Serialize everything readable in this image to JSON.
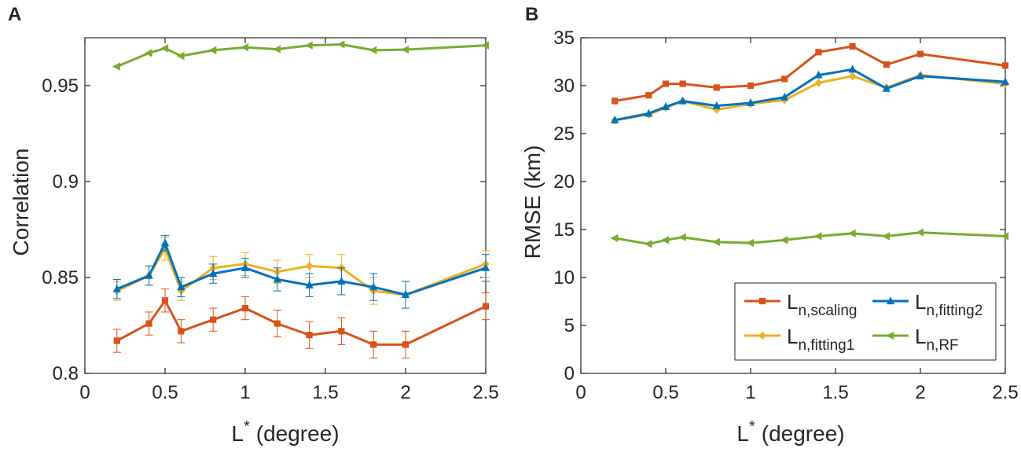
{
  "panels": [
    {
      "label": "A",
      "chart_data": {
        "type": "line",
        "xlabel": "(degree)",
        "xlabel_symbol": "L",
        "xlabel_sup": "*",
        "ylabel": "Correlation",
        "xlim": [
          0,
          2.5
        ],
        "ylim": [
          0.8,
          0.975
        ],
        "xticks": [
          "0",
          "0.5",
          "1",
          "1.5",
          "2",
          "2.5"
        ],
        "xtick_values": [
          0,
          0.5,
          1,
          1.5,
          2,
          2.5
        ],
        "yticks": [
          "0.8",
          "0.85",
          "0.9",
          "0.95"
        ],
        "ytick_values": [
          0.8,
          0.85,
          0.9,
          0.95
        ],
        "x": [
          0.2,
          0.4,
          0.5,
          0.6,
          0.8,
          1.0,
          1.2,
          1.4,
          1.6,
          1.8,
          2.0,
          2.5
        ],
        "series": [
          {
            "key": "rf",
            "color": "#77AC30",
            "marker": "triangle-left",
            "errorbars": false,
            "values": [
              0.96,
              0.967,
              0.9695,
              0.9655,
              0.9685,
              0.97,
              0.969,
              0.971,
              0.9715,
              0.9685,
              0.9688,
              0.971
            ]
          },
          {
            "key": "scaling",
            "color": "#D95319",
            "marker": "square",
            "errorbars": true,
            "values": [
              0.817,
              0.826,
              0.838,
              0.822,
              0.828,
              0.834,
              0.826,
              0.82,
              0.822,
              0.815,
              0.815,
              0.835
            ],
            "err": [
              0.006,
              0.006,
              0.006,
              0.006,
              0.006,
              0.006,
              0.007,
              0.007,
              0.007,
              0.007,
              0.007,
              0.007
            ]
          },
          {
            "key": "fitting1",
            "color": "#EDB120",
            "marker": "diamond",
            "errorbars": true,
            "values": [
              0.843,
              0.851,
              0.865,
              0.843,
              0.855,
              0.857,
              0.853,
              0.856,
              0.855,
              0.843,
              0.841,
              0.857
            ],
            "err": [
              0.005,
              0.005,
              0.006,
              0.005,
              0.006,
              0.006,
              0.006,
              0.006,
              0.007,
              0.007,
              0.007,
              0.007
            ]
          },
          {
            "key": "fitting2",
            "color": "#0072BD",
            "marker": "triangle-up",
            "errorbars": true,
            "values": [
              0.844,
              0.851,
              0.868,
              0.845,
              0.852,
              0.855,
              0.849,
              0.846,
              0.848,
              0.845,
              0.841,
              0.855
            ],
            "err": [
              0.005,
              0.005,
              0.004,
              0.005,
              0.005,
              0.005,
              0.006,
              0.006,
              0.007,
              0.007,
              0.007,
              0.007
            ]
          }
        ]
      }
    },
    {
      "label": "B",
      "chart_data": {
        "type": "line",
        "xlabel": "(degree)",
        "xlabel_symbol": "L",
        "xlabel_sup": "*",
        "ylabel": "RMSE (km)",
        "xlim": [
          0,
          2.5
        ],
        "ylim": [
          0,
          35
        ],
        "xticks": [
          "0",
          "0.5",
          "1",
          "1.5",
          "2",
          "2.5"
        ],
        "xtick_values": [
          0,
          0.5,
          1,
          1.5,
          2,
          2.5
        ],
        "yticks": [
          "0",
          "5",
          "10",
          "15",
          "20",
          "25",
          "30",
          "35"
        ],
        "ytick_values": [
          0,
          5,
          10,
          15,
          20,
          25,
          30,
          35
        ],
        "x": [
          0.2,
          0.4,
          0.5,
          0.6,
          0.8,
          1.0,
          1.2,
          1.4,
          1.6,
          1.8,
          2.0,
          2.5
        ],
        "series": [
          {
            "key": "scaling",
            "color": "#D95319",
            "marker": "square",
            "errorbars": false,
            "values": [
              28.4,
              29.0,
              30.2,
              30.2,
              29.8,
              30.0,
              30.7,
              33.5,
              34.1,
              32.2,
              33.3,
              32.1
            ]
          },
          {
            "key": "fitting1",
            "color": "#EDB120",
            "marker": "diamond",
            "errorbars": false,
            "values": [
              26.4,
              27.0,
              27.7,
              28.4,
              27.5,
              28.1,
              28.5,
              30.3,
              31.0,
              29.8,
              31.1,
              30.2
            ]
          },
          {
            "key": "fitting2",
            "color": "#0072BD",
            "marker": "triangle-up",
            "errorbars": false,
            "values": [
              26.4,
              27.1,
              27.8,
              28.4,
              27.9,
              28.2,
              28.8,
              31.1,
              31.7,
              29.7,
              31.0,
              30.4
            ]
          },
          {
            "key": "rf",
            "color": "#77AC30",
            "marker": "triangle-left",
            "errorbars": false,
            "values": [
              14.1,
              13.5,
              13.9,
              14.2,
              13.7,
              13.6,
              13.9,
              14.3,
              14.6,
              14.3,
              14.7,
              14.3
            ]
          }
        ],
        "legend": {
          "entries": [
            {
              "key": "scaling",
              "base": "L",
              "sub": "n,scaling",
              "color": "#D95319",
              "marker": "square"
            },
            {
              "key": "fitting2",
              "base": "L",
              "sub": "n,fitting2",
              "color": "#0072BD",
              "marker": "triangle-up"
            },
            {
              "key": "fitting1",
              "base": "L",
              "sub": "n,fitting1",
              "color": "#EDB120",
              "marker": "diamond"
            },
            {
              "key": "rf",
              "base": "L",
              "sub": "n,RF",
              "color": "#77AC30",
              "marker": "triangle-left"
            }
          ]
        }
      }
    }
  ]
}
